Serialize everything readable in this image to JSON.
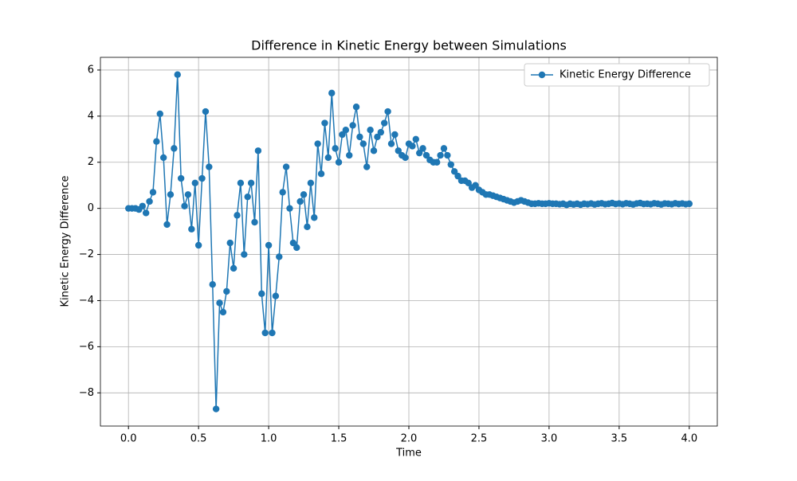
{
  "chart_data": {
    "type": "line",
    "title": "Difference in Kinetic Energy between Simulations",
    "xlabel": "Time",
    "ylabel": "Kinetic Energy Difference",
    "x": [
      0,
      0.025,
      0.05,
      0.075,
      0.1,
      0.125,
      0.15,
      0.175,
      0.2,
      0.225,
      0.25,
      0.275,
      0.3,
      0.325,
      0.35,
      0.375,
      0.4,
      0.425,
      0.45,
      0.475,
      0.5,
      0.525,
      0.55,
      0.575,
      0.6,
      0.625,
      0.65,
      0.675,
      0.7,
      0.725,
      0.75,
      0.775,
      0.8,
      0.825,
      0.85,
      0.875,
      0.9,
      0.925,
      0.95,
      0.975,
      1,
      1.025,
      1.05,
      1.075,
      1.1,
      1.125,
      1.15,
      1.175,
      1.2,
      1.225,
      1.25,
      1.275,
      1.3,
      1.325,
      1.35,
      1.375,
      1.4,
      1.425,
      1.45,
      1.475,
      1.5,
      1.525,
      1.55,
      1.575,
      1.6,
      1.625,
      1.65,
      1.675,
      1.7,
      1.725,
      1.75,
      1.775,
      1.8,
      1.825,
      1.85,
      1.875,
      1.9,
      1.925,
      1.95,
      1.975,
      2,
      2.025,
      2.05,
      2.075,
      2.1,
      2.125,
      2.15,
      2.175,
      2.2,
      2.225,
      2.25,
      2.275,
      2.3,
      2.325,
      2.35,
      2.375,
      2.4,
      2.425,
      2.45,
      2.475,
      2.5,
      2.525,
      2.55,
      2.575,
      2.6,
      2.625,
      2.65,
      2.675,
      2.7,
      2.725,
      2.75,
      2.775,
      2.8,
      2.825,
      2.85,
      2.875,
      2.9,
      2.925,
      2.95,
      2.975,
      3,
      3.025,
      3.05,
      3.075,
      3.1,
      3.125,
      3.15,
      3.175,
      3.2,
      3.225,
      3.25,
      3.275,
      3.3,
      3.325,
      3.35,
      3.375,
      3.4,
      3.425,
      3.45,
      3.475,
      3.5,
      3.525,
      3.55,
      3.575,
      3.6,
      3.625,
      3.65,
      3.675,
      3.7,
      3.725,
      3.75,
      3.775,
      3.8,
      3.825,
      3.85,
      3.875,
      3.9,
      3.925,
      3.95,
      3.975,
      4
    ],
    "series": [
      {
        "name": "Kinetic Energy Difference",
        "color": "#1f77b4",
        "values": [
          0,
          0,
          0,
          -0.05,
          0.1,
          -0.2,
          0.3,
          0.7,
          2.9,
          4.1,
          2.2,
          -0.7,
          0.6,
          2.6,
          5.8,
          1.3,
          0.1,
          0.6,
          -0.9,
          1.1,
          -1.6,
          1.3,
          4.2,
          1.8,
          -3.3,
          -8.7,
          -4.1,
          -4.5,
          -3.6,
          -1.5,
          -2.6,
          -0.3,
          1.1,
          -2.0,
          0.5,
          1.1,
          -0.6,
          2.5,
          -3.7,
          -5.4,
          -1.6,
          -5.4,
          -3.8,
          -2.1,
          0.7,
          1.8,
          0,
          -1.5,
          -1.7,
          0.3,
          0.6,
          -0.8,
          1.1,
          -0.4,
          2.8,
          1.5,
          3.7,
          2.2,
          5.0,
          2.6,
          2.0,
          3.2,
          3.4,
          2.3,
          3.6,
          4.4,
          3.1,
          2.8,
          1.8,
          3.4,
          2.5,
          3.1,
          3.3,
          3.7,
          4.2,
          2.8,
          3.2,
          2.5,
          2.3,
          2.2,
          2.8,
          2.7,
          3.0,
          2.4,
          2.6,
          2.3,
          2.1,
          2.0,
          2.0,
          2.3,
          2.6,
          2.3,
          1.9,
          1.6,
          1.4,
          1.2,
          1.2,
          1.1,
          0.9,
          1.0,
          0.8,
          0.7,
          0.6,
          0.6,
          0.55,
          0.5,
          0.45,
          0.4,
          0.35,
          0.3,
          0.25,
          0.3,
          0.35,
          0.3,
          0.25,
          0.2,
          0.2,
          0.22,
          0.2,
          0.2,
          0.22,
          0.2,
          0.2,
          0.18,
          0.2,
          0.15,
          0.2,
          0.17,
          0.2,
          0.16,
          0.2,
          0.18,
          0.21,
          0.17,
          0.2,
          0.22,
          0.18,
          0.2,
          0.23,
          0.19,
          0.21,
          0.18,
          0.22,
          0.2,
          0.17,
          0.21,
          0.23,
          0.19,
          0.2,
          0.18,
          0.22,
          0.2,
          0.17,
          0.21,
          0.2,
          0.18,
          0.22,
          0.19,
          0.21,
          0.18,
          0.2
        ]
      }
    ],
    "xlim": [
      -0.2,
      4.2
    ],
    "ylim": [
      -9.44,
      6.55
    ],
    "xticks": [
      {
        "value": 0,
        "label": "0.0"
      },
      0.5,
      {
        "value": 1,
        "label": "1.0"
      },
      1.5,
      {
        "value": 2,
        "label": "2.0"
      },
      2.5,
      {
        "value": 3,
        "label": "3.0"
      },
      3.5,
      {
        "value": 4,
        "label": "4.0"
      }
    ],
    "yticks": [
      {
        "value": -8,
        "label": "−8"
      },
      {
        "value": -6,
        "label": "−6"
      },
      {
        "value": -4,
        "label": "−4"
      },
      {
        "value": -2,
        "label": "−2"
      },
      0,
      2,
      4,
      6
    ],
    "grid": true,
    "legend": "upper right"
  }
}
